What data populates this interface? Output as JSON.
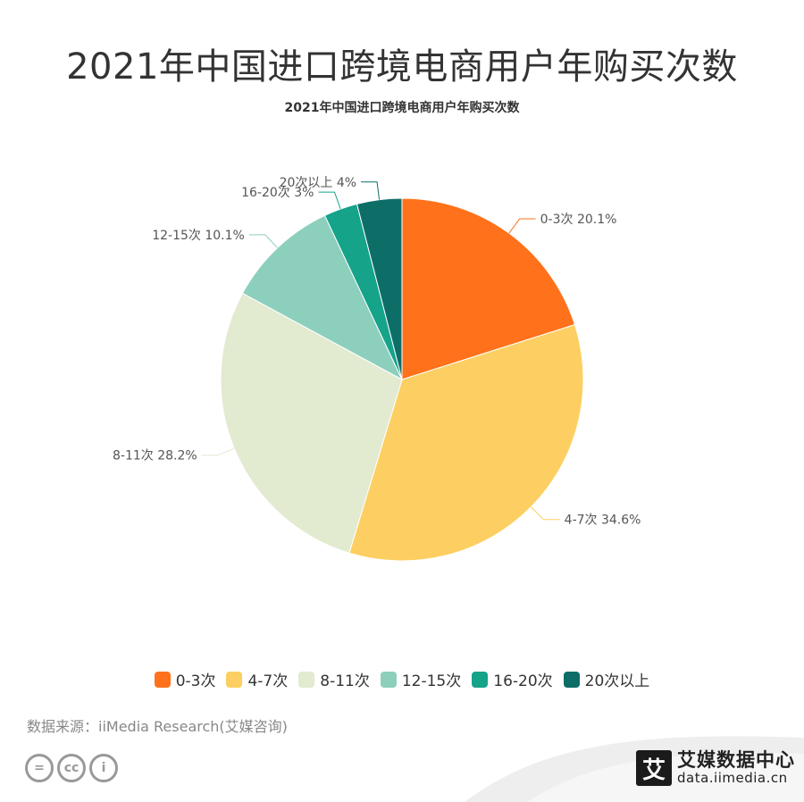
{
  "title": "2021年中国进口跨境电商用户年购买次数",
  "chart_data": {
    "type": "pie",
    "title": "2021年中国进口跨境电商用户年购买次数",
    "slices": [
      {
        "label": "0-3次",
        "value": 20.1,
        "display": "0-3次 20.1%",
        "color": "#FF711A"
      },
      {
        "label": "4-7次",
        "value": 34.6,
        "display": "4-7次 34.6%",
        "color": "#FDCF62"
      },
      {
        "label": "8-11次",
        "value": 28.2,
        "display": "8-11次 28.2%",
        "color": "#E2EAD0"
      },
      {
        "label": "12-15次",
        "value": 10.1,
        "display": "12-15次 10.1%",
        "color": "#8CCFBC"
      },
      {
        "label": "16-20次",
        "value": 3,
        "display": "16-20次 3%",
        "color": "#15A38A"
      },
      {
        "label": "20次以上",
        "value": 4,
        "display": "20次以上 4%",
        "color": "#0D6E68"
      }
    ],
    "legend_position": "bottom"
  },
  "source": "数据来源：iiMedia Research(艾媒咨询)",
  "license_icons": [
    "=",
    "cc",
    "i"
  ],
  "brand": {
    "logo_char": "艾",
    "name": "艾媒数据中心",
    "url": "data.iimedia.cn"
  }
}
